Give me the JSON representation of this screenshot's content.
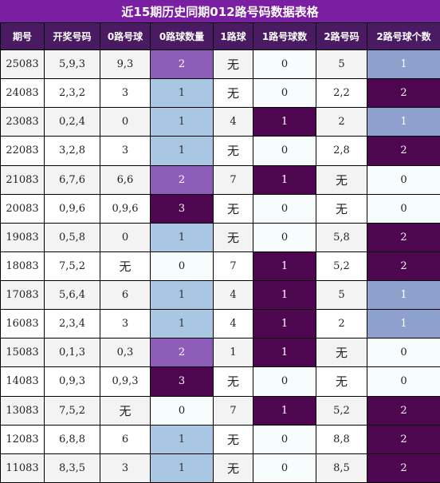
{
  "title": "近15期历史同期012路号码数据表格",
  "headers": [
    "期号",
    "开奖号码",
    "0路号球",
    "0路球数量",
    "1路球",
    "1路号球数",
    "2路号码",
    "2路号球个数"
  ],
  "rows": [
    {
      "issue": "25083",
      "numbers": "5,9,3",
      "r0": "9,3",
      "r0count": "2",
      "r1": "无",
      "r1count": "0",
      "r2": "5",
      "r2count": "1"
    },
    {
      "issue": "24083",
      "numbers": "2,3,2",
      "r0": "3",
      "r0count": "1",
      "r1": "无",
      "r1count": "0",
      "r2": "2,2",
      "r2count": "2"
    },
    {
      "issue": "23083",
      "numbers": "0,2,4",
      "r0": "0",
      "r0count": "1",
      "r1": "4",
      "r1count": "1",
      "r2": "2",
      "r2count": "1"
    },
    {
      "issue": "22083",
      "numbers": "3,2,8",
      "r0": "3",
      "r0count": "1",
      "r1": "无",
      "r1count": "0",
      "r2": "2,8",
      "r2count": "2"
    },
    {
      "issue": "21083",
      "numbers": "6,7,6",
      "r0": "6,6",
      "r0count": "2",
      "r1": "7",
      "r1count": "1",
      "r2": "无",
      "r2count": "0"
    },
    {
      "issue": "20083",
      "numbers": "0,9,6",
      "r0": "0,9,6",
      "r0count": "3",
      "r1": "无",
      "r1count": "0",
      "r2": "无",
      "r2count": "0"
    },
    {
      "issue": "19083",
      "numbers": "0,5,8",
      "r0": "0",
      "r0count": "1",
      "r1": "无",
      "r1count": "0",
      "r2": "5,8",
      "r2count": "2"
    },
    {
      "issue": "18083",
      "numbers": "7,5,2",
      "r0": "无",
      "r0count": "0",
      "r1": "7",
      "r1count": "1",
      "r2": "5,2",
      "r2count": "2"
    },
    {
      "issue": "17083",
      "numbers": "5,6,4",
      "r0": "6",
      "r0count": "1",
      "r1": "4",
      "r1count": "1",
      "r2": "5",
      "r2count": "1"
    },
    {
      "issue": "16083",
      "numbers": "2,3,4",
      "r0": "3",
      "r0count": "1",
      "r1": "4",
      "r1count": "1",
      "r2": "2",
      "r2count": "1"
    },
    {
      "issue": "15083",
      "numbers": "0,1,3",
      "r0": "0,3",
      "r0count": "2",
      "r1": "1",
      "r1count": "1",
      "r2": "无",
      "r2count": "0"
    },
    {
      "issue": "14083",
      "numbers": "0,9,3",
      "r0": "0,9,3",
      "r0count": "3",
      "r1": "无",
      "r1count": "0",
      "r2": "无",
      "r2count": "0"
    },
    {
      "issue": "13083",
      "numbers": "7,5,2",
      "r0": "无",
      "r0count": "0",
      "r1": "7",
      "r1count": "1",
      "r2": "5,2",
      "r2count": "2"
    },
    {
      "issue": "12083",
      "numbers": "6,8,8",
      "r0": "6",
      "r0count": "1",
      "r1": "无",
      "r1count": "0",
      "r2": "8,8",
      "r2count": "2"
    },
    {
      "issue": "11083",
      "numbers": "8,3,5",
      "r0": "3",
      "r0count": "1",
      "r1": "无",
      "r1count": "0",
      "r2": "8,5",
      "r2count": "2"
    }
  ],
  "colors": {
    "title_bg": "#7b1fa2",
    "header_bg": "#4a1a63",
    "r0_count_1": "#a9c7e2",
    "r0_count_2": "#8e5cb9",
    "r0_count_3": "#4e0650",
    "r1_count_1": "#4e0650",
    "r2_count_1": "#8ea0cd",
    "r2_count_2": "#4e0650"
  }
}
